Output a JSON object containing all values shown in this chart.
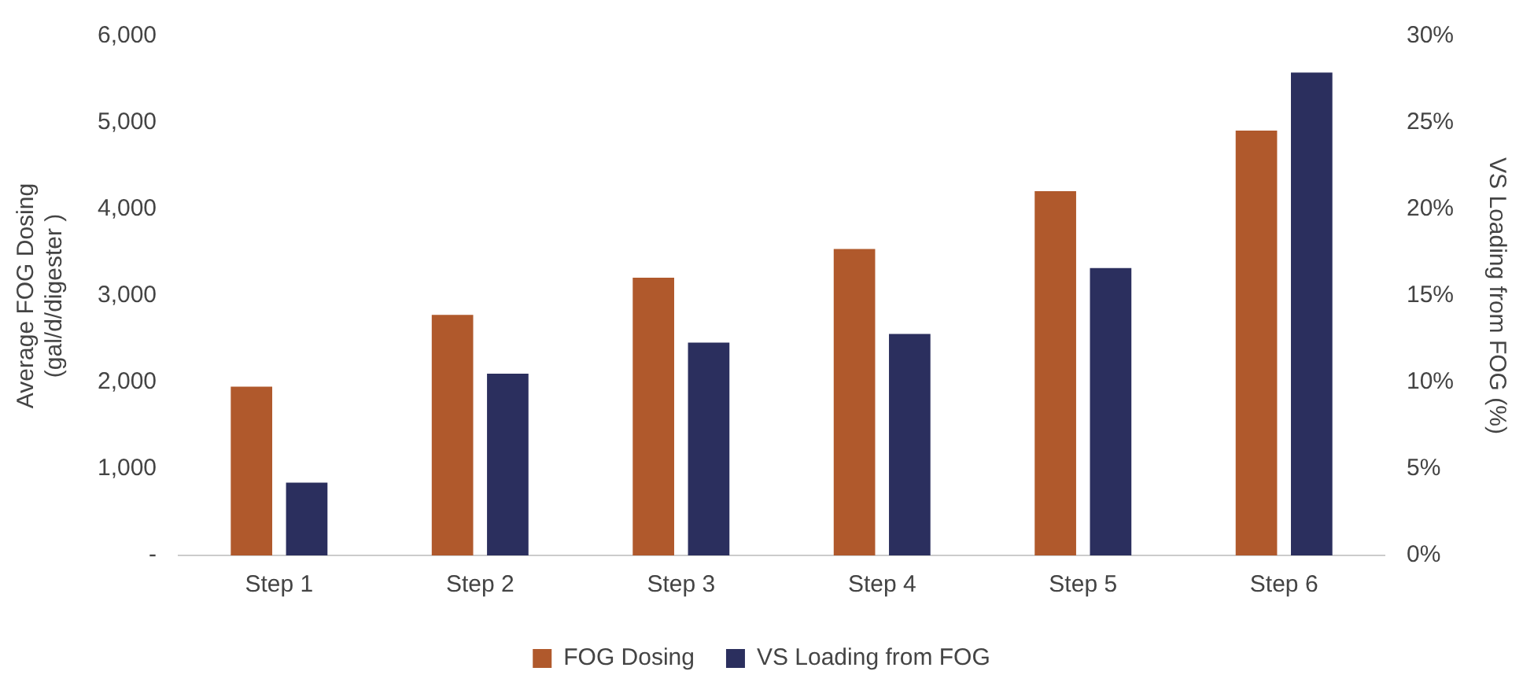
{
  "chart_data": {
    "type": "bar",
    "ylabel": "Average FOG Dosing\n(gal/d/digester )",
    "y2label": "VS Loading from FOG (%)",
    "categories": [
      "Step 1",
      "Step 2",
      "Step 3",
      "Step 4",
      "Step 5",
      "Step 6"
    ],
    "series": [
      {
        "name": "FOG Dosing",
        "color": "#b0592c",
        "values": [
          1950,
          2780,
          3210,
          3540,
          4210,
          4910
        ]
      },
      {
        "name": "VS Loading from FOG",
        "color": "#2b2f5e",
        "axis": "y2",
        "values": [
          4.2,
          10.5,
          12.3,
          12.8,
          16.6,
          27.9
        ]
      }
    ],
    "ylim": [
      0,
      6000
    ],
    "yticks": [
      {
        "value": 0,
        "label": "-"
      },
      {
        "value": 1000,
        "label": "1,000"
      },
      {
        "value": 2000,
        "label": "2,000"
      },
      {
        "value": 3000,
        "label": "3,000"
      },
      {
        "value": 4000,
        "label": "4,000"
      },
      {
        "value": 5000,
        "label": "5,000"
      },
      {
        "value": 6000,
        "label": "6,000"
      }
    ],
    "y2lim": [
      0,
      30
    ],
    "y2ticks": [
      {
        "value": 0,
        "label": "0%"
      },
      {
        "value": 5,
        "label": "5%"
      },
      {
        "value": 10,
        "label": "10%"
      },
      {
        "value": 15,
        "label": "15%"
      },
      {
        "value": 20,
        "label": "20%"
      },
      {
        "value": 25,
        "label": "25%"
      },
      {
        "value": 30,
        "label": "30%"
      }
    ],
    "grid": false,
    "legend": "bottom"
  }
}
